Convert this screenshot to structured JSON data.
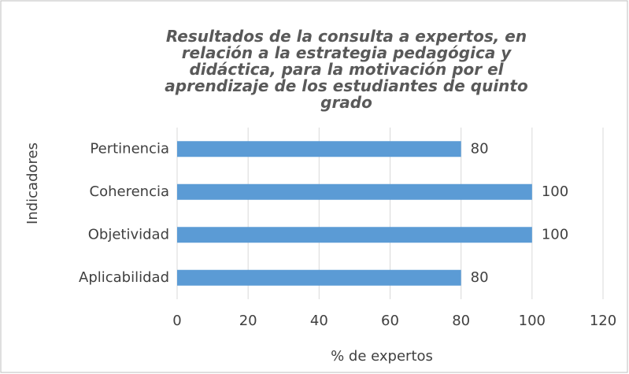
{
  "chart_data": {
    "type": "barh",
    "title": "Resultados de la consulta a expertos, en relación a la estrategia pedagógica y didáctica, para la motivación por el aprendizaje de los estudiantes de quinto grado",
    "categories": [
      "Pertinencia",
      "Coherencia",
      "Objetividad",
      "Aplicabilidad"
    ],
    "values": [
      80,
      100,
      100,
      80
    ],
    "color": "#5b9bd5",
    "xlim": [
      0,
      120
    ],
    "xticks": [
      0,
      20,
      40,
      60,
      80,
      100,
      120
    ],
    "xlabel": "% de expertos",
    "ylabel": "Indicadores",
    "grid": true
  }
}
